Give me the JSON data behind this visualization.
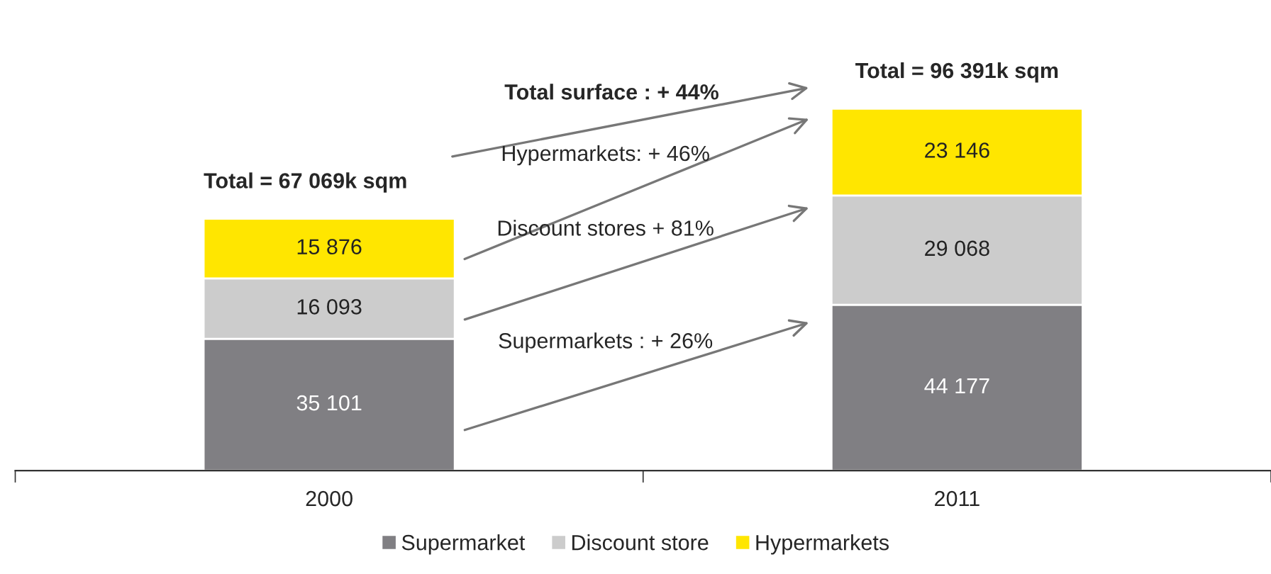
{
  "chart_data": {
    "type": "bar",
    "stacked": true,
    "categories": [
      "2000",
      "2011"
    ],
    "series": [
      {
        "name": "Supermarket",
        "color": "#807f83",
        "values": [
          35101,
          44177
        ],
        "value_labels": [
          "35 101",
          "44 177"
        ]
      },
      {
        "name": "Discount store",
        "color": "#cccccc",
        "values": [
          16093,
          29068
        ],
        "value_labels": [
          "16 093",
          "29 068"
        ]
      },
      {
        "name": "Hypermarkets",
        "color": "#ffe600",
        "values": [
          15876,
          23146
        ],
        "value_labels": [
          "15 876",
          "23 146"
        ]
      }
    ],
    "totals": [
      "Total = 67 069k sqm",
      "Total = 96 391k sqm"
    ],
    "annotations": [
      "Total surface : + 44%",
      "Hypermarkets: + 46%",
      "Discount stores + 81%",
      "Supermarkets : + 26%"
    ],
    "legend": "bottom",
    "grid": false,
    "tick_labels": "x"
  }
}
